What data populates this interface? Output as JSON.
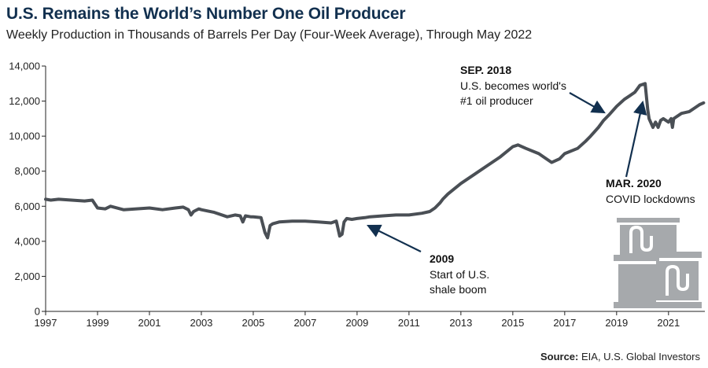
{
  "header": {
    "title": "U.S. Remains the World’s Number One Oil Producer",
    "subtitle": "Weekly Production in Thousands of Barrels Per Day (Four-Week Average), Through May 2022"
  },
  "source": {
    "label": "Source:",
    "text": "EIA, U.S. Global Investors"
  },
  "colors": {
    "line": "#4a4f55",
    "barrel": "#a6a9ac",
    "title": "#12304f"
  },
  "icon": "oil-barrels-icon",
  "chart_data": {
    "type": "line",
    "title": "U.S. Remains the World’s Number One Oil Producer",
    "subtitle": "Weekly Production in Thousands of Barrels Per Day (Four-Week Average), Through May 2022",
    "xlim": [
      1997,
      2022.4
    ],
    "ylim": [
      0,
      14000
    ],
    "grid": false,
    "x_ticks": [
      1997,
      1999,
      2001,
      2003,
      2005,
      2007,
      2009,
      2011,
      2013,
      2015,
      2017,
      2019,
      2021
    ],
    "x_tick_labels": [
      "1997",
      "1999",
      "2001",
      "2003",
      "2005",
      "2007",
      "2009",
      "2011",
      "2013",
      "2015",
      "2017",
      "2019",
      "2021"
    ],
    "y_ticks": [
      0,
      2000,
      4000,
      6000,
      8000,
      10000,
      12000,
      14000
    ],
    "y_tick_labels": [
      "0",
      "2,000",
      "4,000",
      "6,000",
      "8,000",
      "10,000",
      "12,000",
      "14,000"
    ],
    "series": [
      {
        "x": [
          1997.0,
          1997.2,
          1997.5,
          1998.0,
          1998.5,
          1998.8,
          1999.0,
          1999.3,
          1999.5,
          2000.0,
          2000.5,
          2001.0,
          2001.5,
          2002.0,
          2002.3,
          2002.5,
          2002.6,
          2002.7,
          2002.9,
          2003.0,
          2003.5,
          2004.0,
          2004.3,
          2004.5,
          2004.6,
          2004.7,
          2004.9,
          2005.0,
          2005.3,
          2005.45,
          2005.55,
          2005.65,
          2005.75,
          2006.0,
          2006.5,
          2007.0,
          2007.5,
          2008.0,
          2008.2,
          2008.33,
          2008.42,
          2008.5,
          2008.6,
          2008.8,
          2009.0,
          2009.3,
          2009.5,
          2010.0,
          2010.5,
          2011.0,
          2011.5,
          2011.8,
          2012.0,
          2012.2,
          2012.3,
          2012.5,
          2013.0,
          2013.5,
          2014.0,
          2014.5,
          2015.0,
          2015.2,
          2015.5,
          2016.0,
          2016.3,
          2016.5,
          2016.8,
          2017.0,
          2017.5,
          2017.8,
          2018.0,
          2018.3,
          2018.5,
          2018.7,
          2019.0,
          2019.3,
          2019.5,
          2019.7,
          2019.9,
          2020.1,
          2020.2,
          2020.25,
          2020.4,
          2020.5,
          2020.6,
          2020.7,
          2020.8,
          2021.0,
          2021.1,
          2021.15,
          2021.2,
          2021.3,
          2021.5,
          2021.8,
          2022.0,
          2022.2,
          2022.35
        ],
        "values": [
          6400,
          6350,
          6400,
          6350,
          6300,
          6350,
          5900,
          5850,
          6000,
          5800,
          5850,
          5900,
          5800,
          5900,
          5950,
          5800,
          5500,
          5700,
          5850,
          5800,
          5650,
          5400,
          5500,
          5450,
          5100,
          5450,
          5400,
          5400,
          5350,
          4500,
          4200,
          4900,
          5000,
          5100,
          5150,
          5150,
          5100,
          5050,
          5150,
          4300,
          4400,
          5100,
          5300,
          5250,
          5300,
          5350,
          5400,
          5450,
          5500,
          5500,
          5600,
          5700,
          5900,
          6200,
          6400,
          6700,
          7300,
          7800,
          8300,
          8800,
          9400,
          9500,
          9300,
          9000,
          8700,
          8500,
          8700,
          9000,
          9300,
          9700,
          10000,
          10500,
          10900,
          11200,
          11700,
          12100,
          12300,
          12500,
          12900,
          13000,
          11500,
          11000,
          10500,
          10800,
          10500,
          10900,
          11000,
          10800,
          11000,
          10500,
          11000,
          11100,
          11300,
          11400,
          11600,
          11800,
          11900
        ]
      }
    ],
    "annotations": [
      {
        "heading": "SEP. 2018",
        "lines": [
          "U.S. becomes world's",
          "#1 oil producer"
        ],
        "x": 2018.7,
        "y": 11200
      },
      {
        "heading": "MAR. 2020",
        "lines": [
          "COVID lockdowns"
        ],
        "x": 2019.85,
        "y": 12000
      },
      {
        "heading": "2009",
        "lines": [
          "Start of U.S.",
          "shale boom"
        ],
        "x": 2009.15,
        "y": 4950
      }
    ]
  }
}
